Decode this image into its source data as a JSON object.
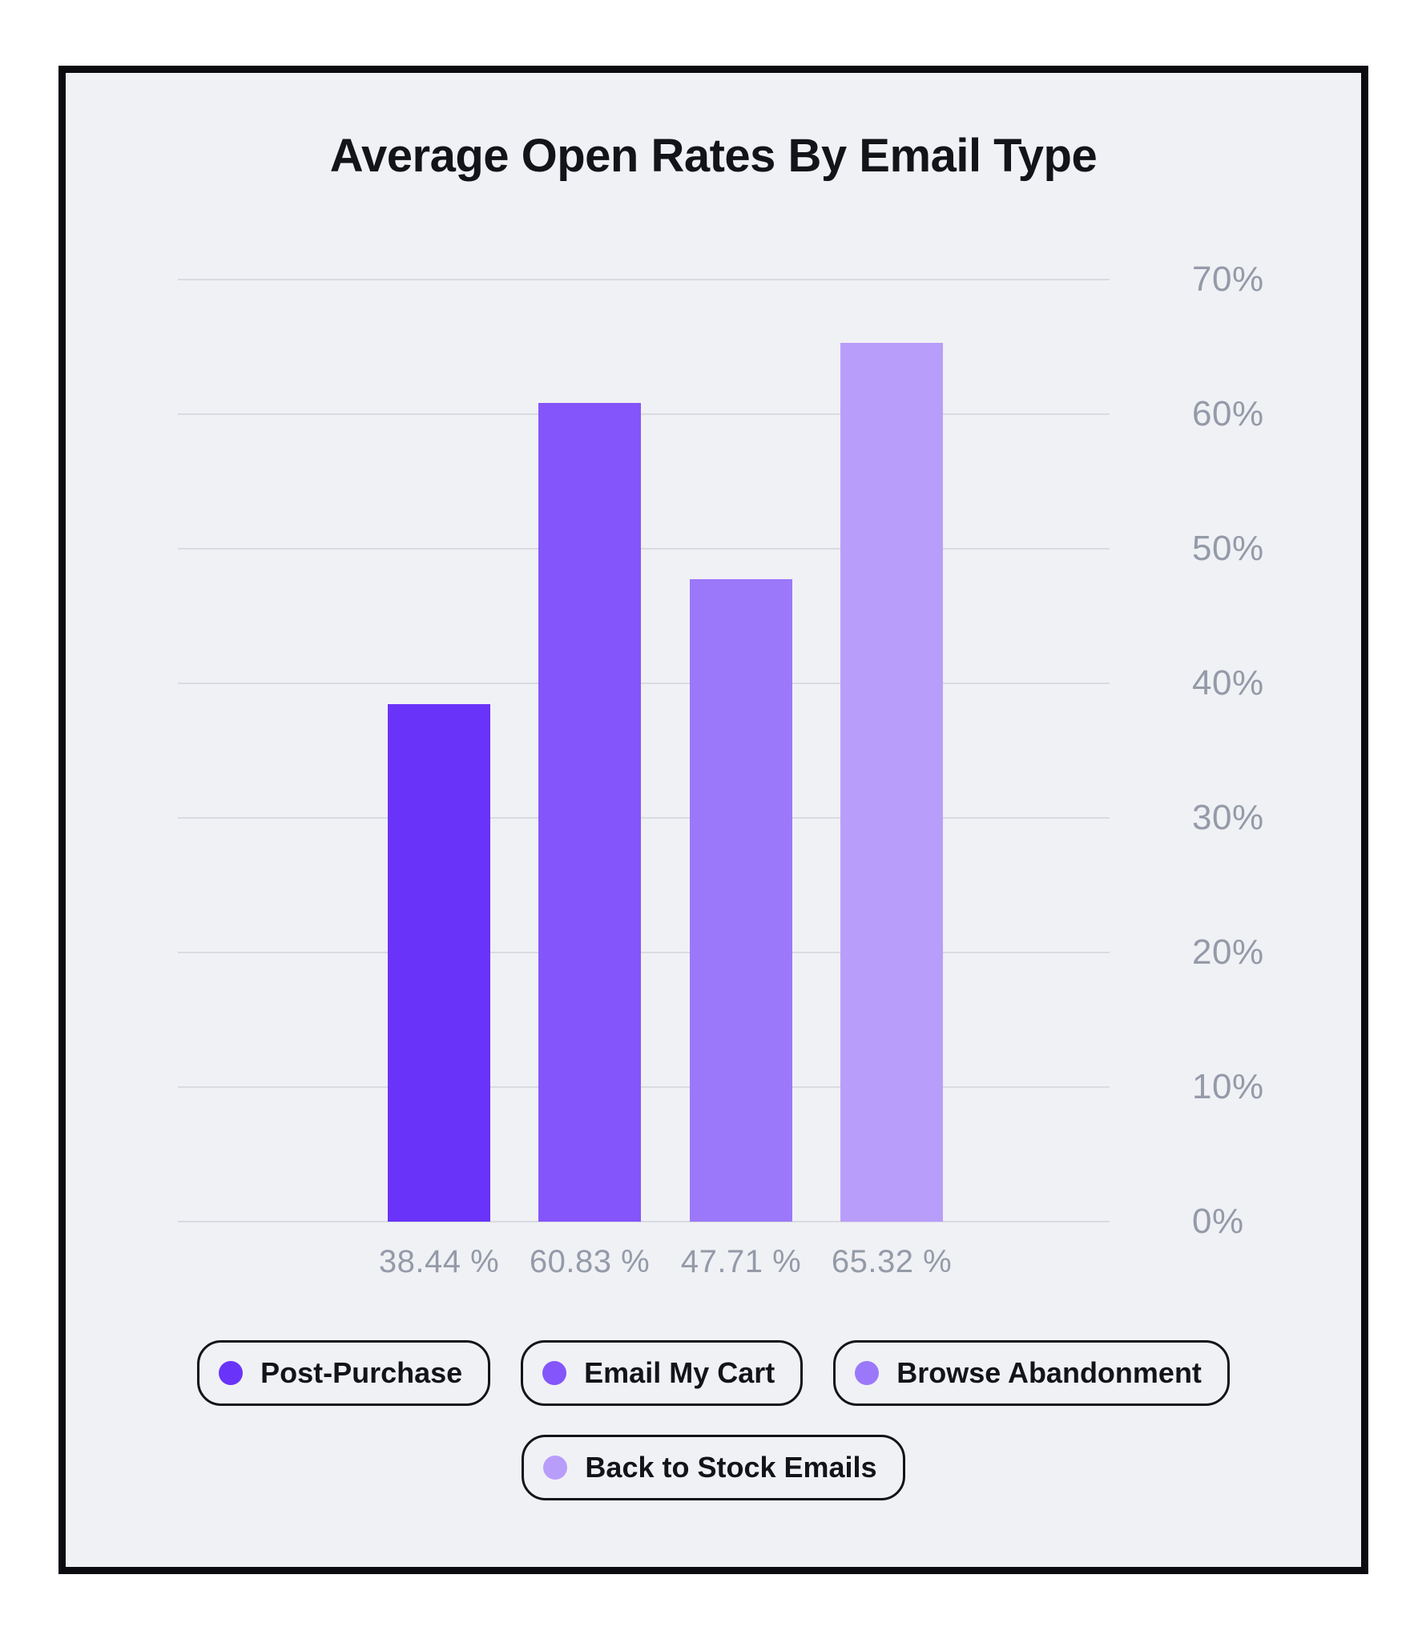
{
  "chart_data": {
    "type": "bar",
    "title": "Average Open Rates By Email Type",
    "categories": [
      "Post-Purchase",
      "Email My Cart",
      "Browse Abandonment",
      "Back to Stock Emails"
    ],
    "values": [
      38.44,
      60.83,
      47.71,
      65.32
    ],
    "value_labels": [
      "38.44 %",
      "60.83 %",
      "47.71 %",
      "65.32 %"
    ],
    "bar_colors": [
      "#6a33f9",
      "#8455fa",
      "#9b78fa",
      "#b99dfb"
    ],
    "xlabel": "",
    "ylabel": "",
    "ylim": [
      0,
      70
    ],
    "yticks": [
      0,
      10,
      20,
      30,
      40,
      50,
      60,
      70
    ],
    "ytick_labels": [
      "0%",
      "10%",
      "20%",
      "30%",
      "40%",
      "50%",
      "60%",
      "70%"
    ],
    "grid": true,
    "legend_position": "bottom",
    "legend_rows": [
      [
        0,
        1,
        2
      ],
      [
        3
      ]
    ]
  },
  "legend": {
    "items": [
      {
        "label": "Post-Purchase",
        "color": "#6a33f9"
      },
      {
        "label": "Email My Cart",
        "color": "#8455fa"
      },
      {
        "label": "Browse Abandonment",
        "color": "#9b78fa"
      },
      {
        "label": "Back to Stock Emails",
        "color": "#b99dfb"
      }
    ]
  },
  "colors": {
    "page_bg": "#ffffff",
    "card_bg": "#f0f1f5",
    "card_border": "#0c0c10",
    "gridline": "#d8dbe1",
    "axis_label": "#949aa8",
    "text": "#131419"
  }
}
